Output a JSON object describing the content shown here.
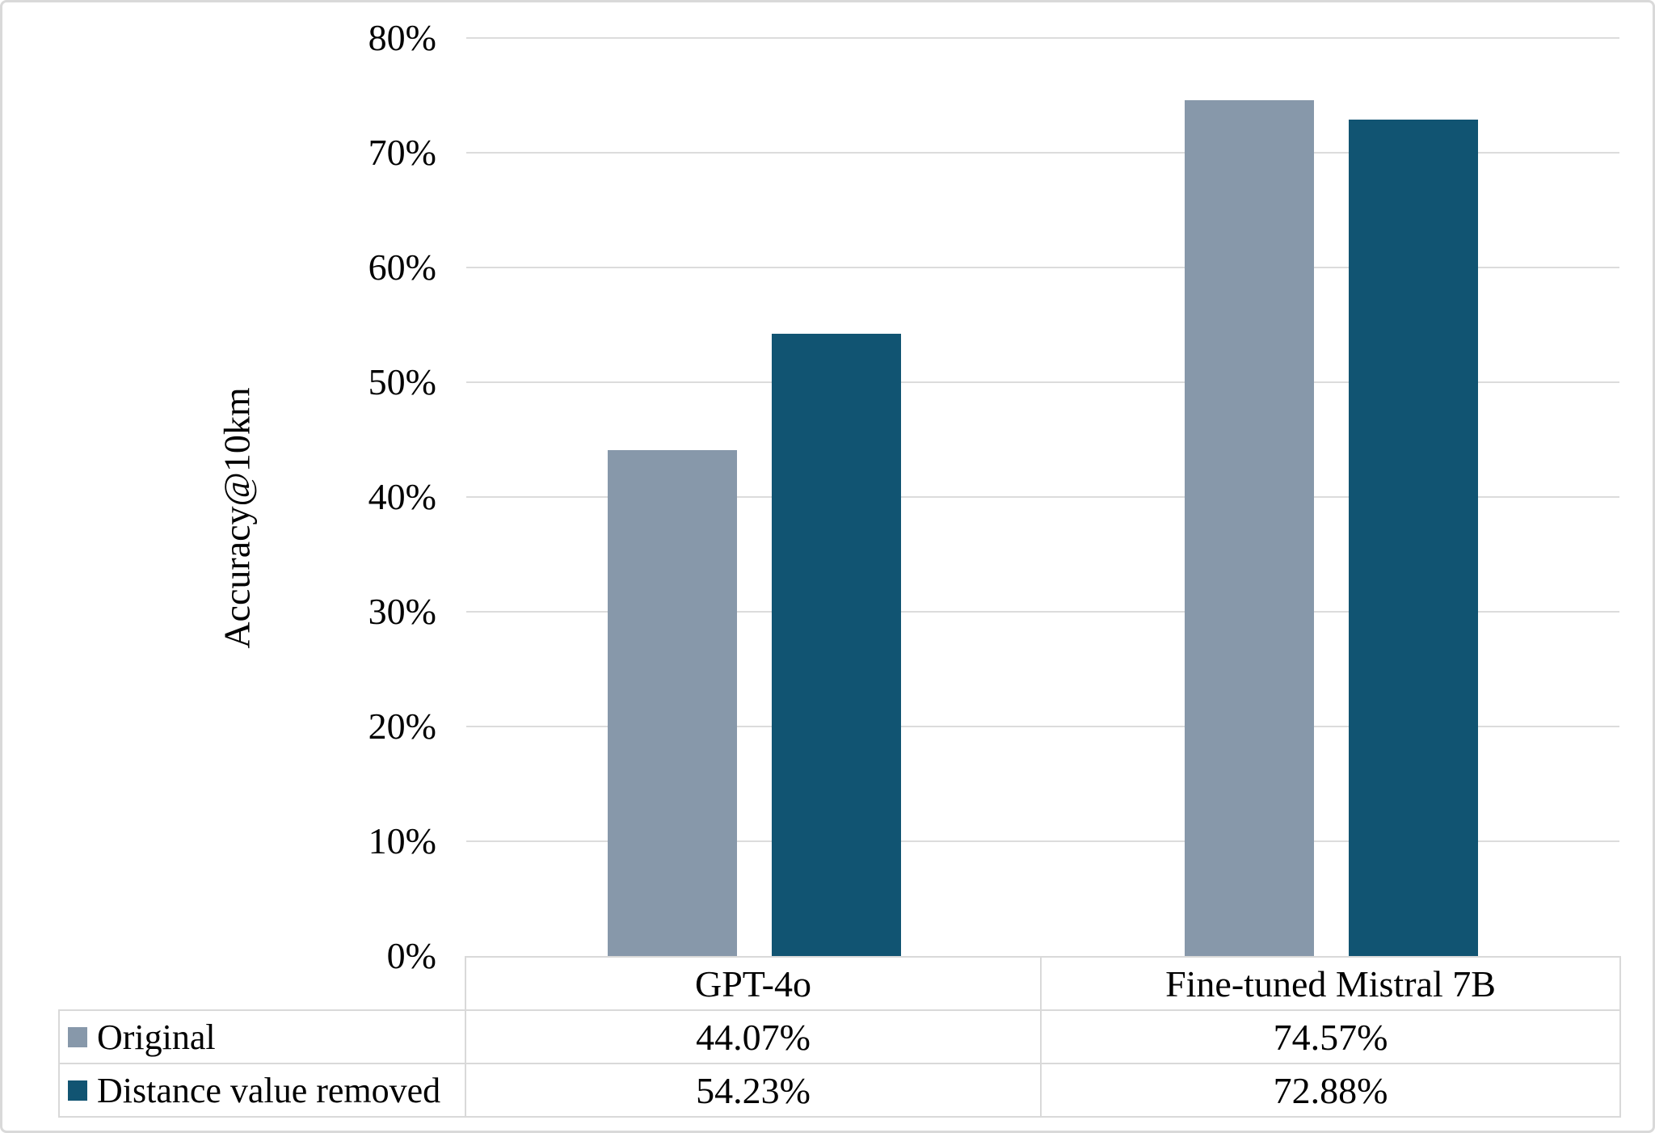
{
  "chart_data": {
    "type": "bar",
    "title": "",
    "ylabel": "Accuracy@10km",
    "xlabel": "",
    "ylim": [
      0,
      80
    ],
    "ytick_step": 10,
    "yticks": [
      "0%",
      "10%",
      "20%",
      "30%",
      "40%",
      "50%",
      "60%",
      "70%",
      "80%"
    ],
    "grid": "horizontal",
    "gridline_color": "#d9d9d9",
    "legend_position": "bottom-table",
    "categories": [
      "GPT-4o",
      "Fine-tuned Mistral 7B"
    ],
    "series": [
      {
        "name": "Original",
        "color": "#8798aa",
        "values": [
          44.07,
          74.57
        ],
        "labels": [
          "44.07%",
          "74.57%"
        ]
      },
      {
        "name": "Distance value removed",
        "color": "#115472",
        "values": [
          54.23,
          72.88
        ],
        "labels": [
          "54.23%",
          "72.88%"
        ]
      }
    ]
  }
}
